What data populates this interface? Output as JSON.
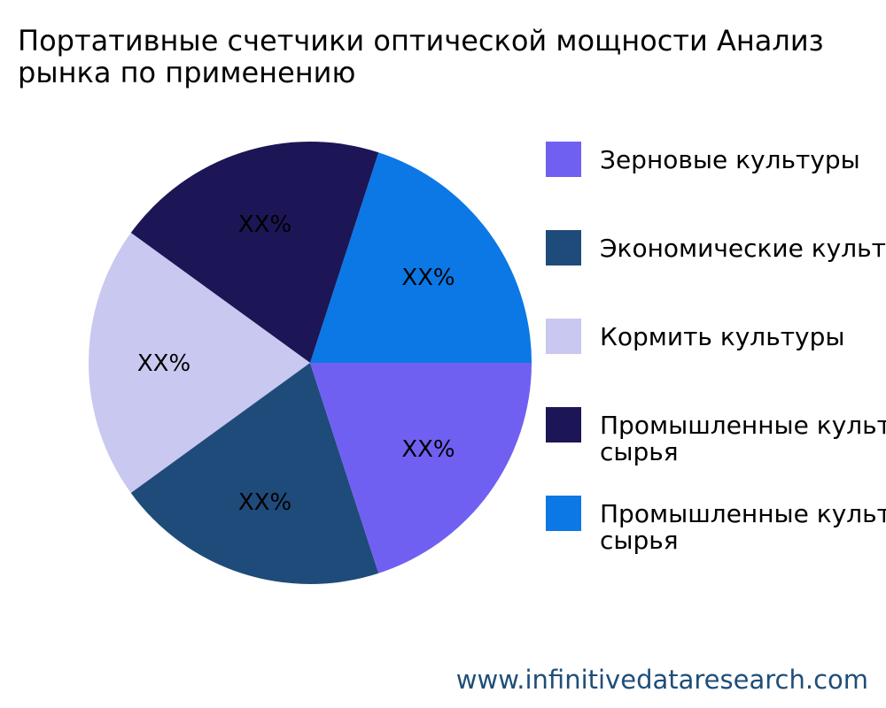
{
  "chart_data": {
    "type": "pie",
    "title_lines": [
      "Портативные счетчики оптической мощности Анализ",
      "рынка по применению"
    ],
    "slices": [
      {
        "legend_lines": [
          "Зерновые культуры"
        ],
        "slice_label": "XX%",
        "value": 20,
        "color": "#7060f2"
      },
      {
        "legend_lines": [
          "Экономические культуры"
        ],
        "slice_label": "XX%",
        "value": 20,
        "color": "#1f4b7a"
      },
      {
        "legend_lines": [
          "Кормить культуры"
        ],
        "slice_label": "XX%",
        "value": 20,
        "color": "#c8c8f0"
      },
      {
        "legend_lines": [
          "Промышленные культуры для",
          "сырья"
        ],
        "slice_label": "XX%",
        "value": 20,
        "color": "#1c1656"
      },
      {
        "legend_lines": [
          "Промышленные культуры для",
          "сырья"
        ],
        "slice_label": "XX%",
        "value": 20,
        "color": "#0b78e6"
      }
    ],
    "legend_position": "right"
  },
  "watermark": "www.infinitivedataresearch.com"
}
